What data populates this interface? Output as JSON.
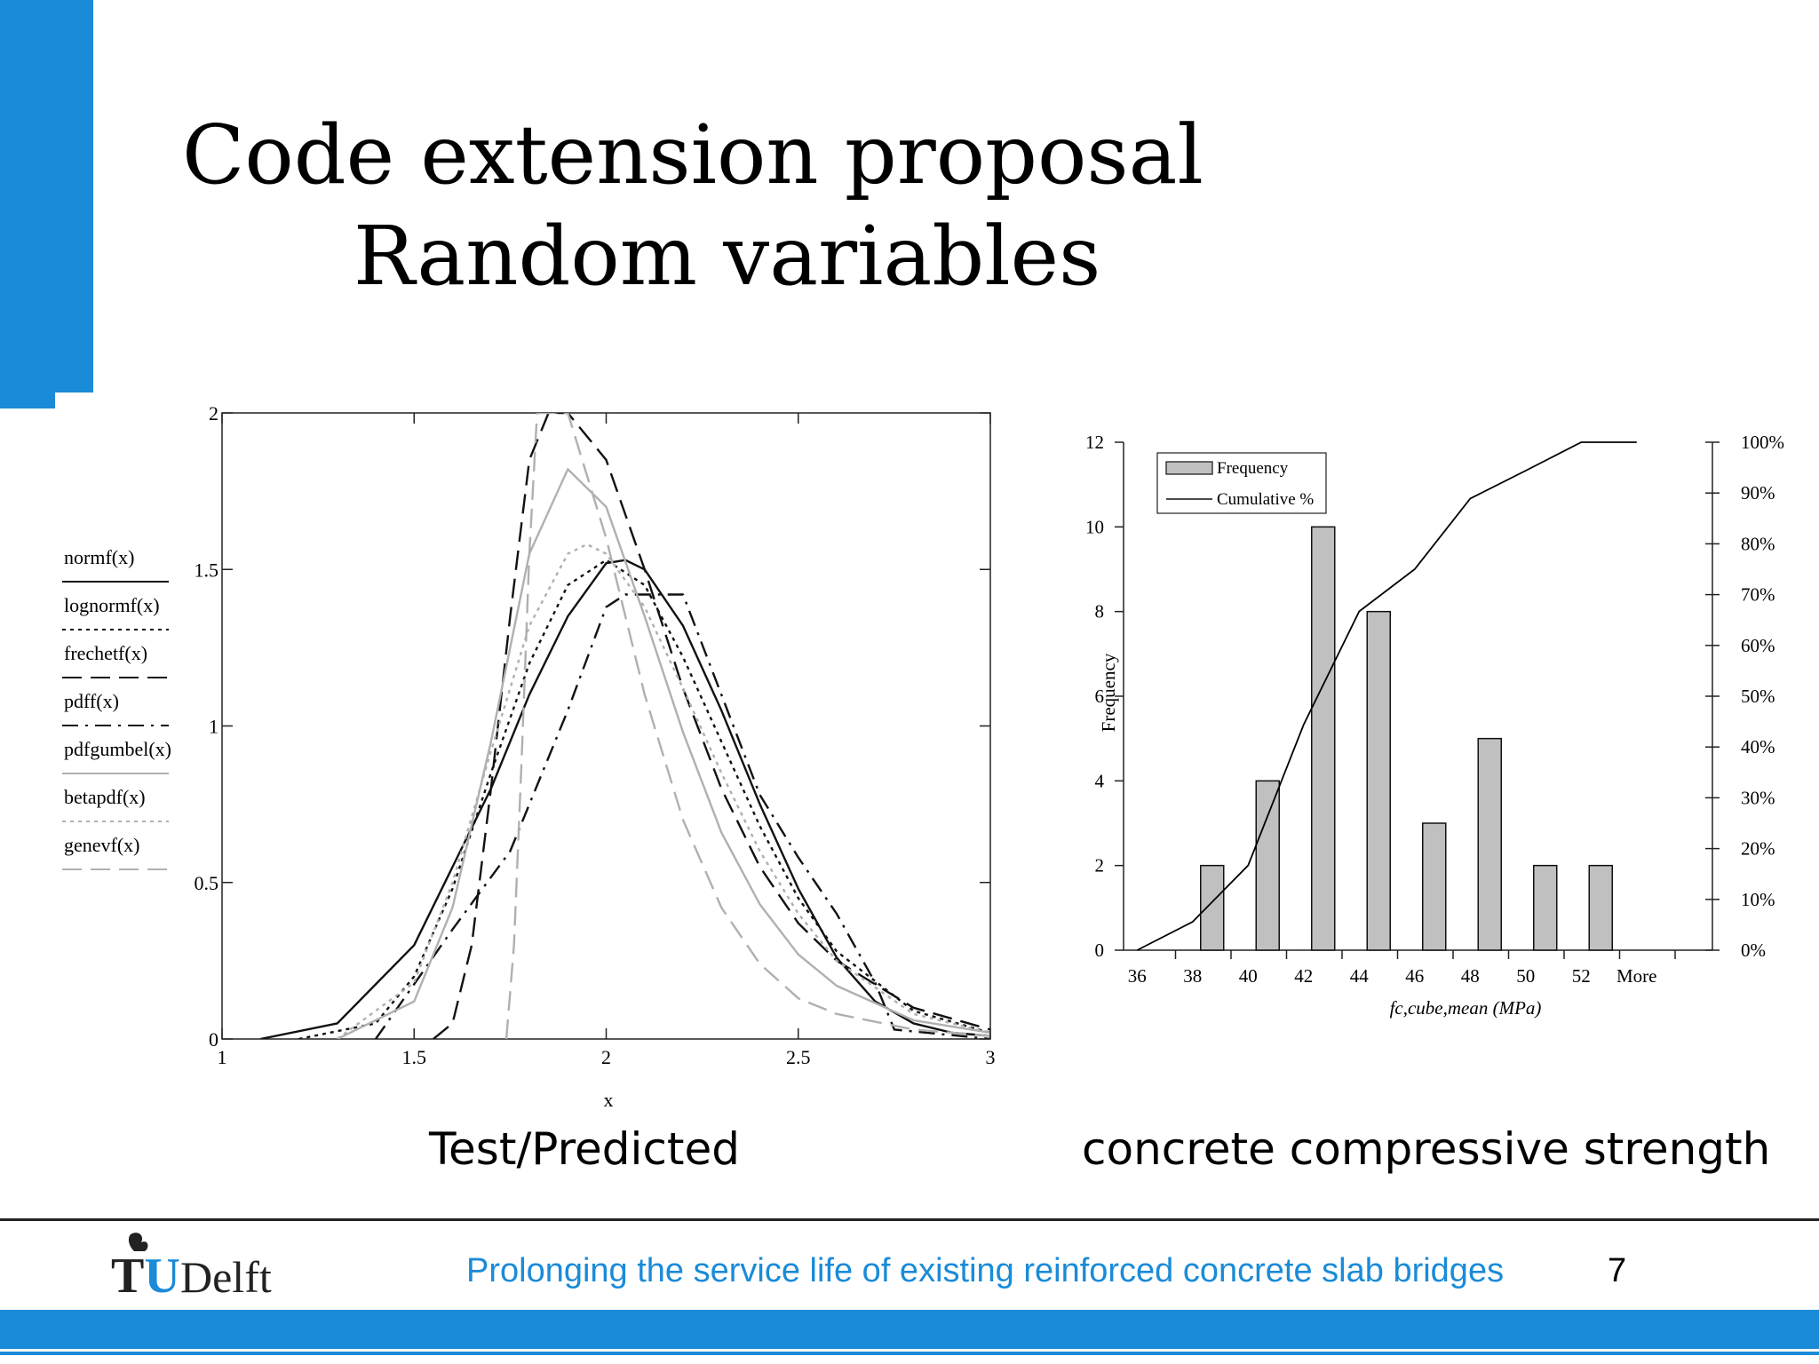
{
  "slide": {
    "title_line1": "Code extension proposal",
    "title_line2": "Random variables",
    "caption_left": "Test/Predicted",
    "caption_right": "concrete compressive strength",
    "footer_text": "Prolonging the service life of existing reinforced concrete slab bridges",
    "page_number": "7",
    "logo_text": "Delft",
    "logo_letters": "TU",
    "accent_color": "#1a8bd8"
  },
  "chart_data": [
    {
      "type": "line",
      "title": "",
      "xlabel": "x",
      "ylabel": "",
      "xlim": [
        1,
        3
      ],
      "ylim": [
        0,
        2
      ],
      "xticks": [
        "1",
        "1.5",
        "2",
        "2.5",
        "3"
      ],
      "yticks": [
        "0",
        "0.5",
        "1",
        "1.5",
        "2"
      ],
      "legend_position": "left",
      "series": [
        {
          "name": "normf(x)",
          "style": "solid-black",
          "x": [
            1.1,
            1.3,
            1.5,
            1.7,
            1.8,
            1.9,
            2.0,
            2.05,
            2.1,
            2.2,
            2.3,
            2.4,
            2.5,
            2.6,
            2.7,
            2.8,
            2.9,
            3.0
          ],
          "y": [
            0.0,
            0.05,
            0.3,
            0.8,
            1.1,
            1.35,
            1.52,
            1.53,
            1.5,
            1.32,
            1.05,
            0.75,
            0.48,
            0.26,
            0.12,
            0.05,
            0.02,
            0.01
          ]
        },
        {
          "name": "lognormf(x)",
          "style": "dotted-black",
          "x": [
            1.2,
            1.4,
            1.5,
            1.6,
            1.7,
            1.8,
            1.9,
            2.0,
            2.1,
            2.2,
            2.3,
            2.4,
            2.5,
            2.6,
            2.8,
            3.0
          ],
          "y": [
            0.0,
            0.05,
            0.2,
            0.48,
            0.85,
            1.2,
            1.45,
            1.53,
            1.45,
            1.22,
            0.95,
            0.68,
            0.45,
            0.28,
            0.09,
            0.02
          ]
        },
        {
          "name": "frechetf(x)",
          "style": "dash-black",
          "x": [
            1.55,
            1.6,
            1.65,
            1.7,
            1.75,
            1.8,
            1.85,
            1.9,
            2.0,
            2.1,
            2.2,
            2.3,
            2.4,
            2.5,
            2.6,
            2.8,
            3.0
          ],
          "y": [
            0.0,
            0.05,
            0.3,
            0.8,
            1.35,
            1.85,
            2.0,
            2.0,
            1.85,
            1.5,
            1.12,
            0.8,
            0.55,
            0.37,
            0.25,
            0.1,
            0.03
          ]
        },
        {
          "name": "pdff(x)",
          "style": "dashdot-black",
          "x": [
            1.4,
            1.6,
            1.75,
            1.9,
            2.0,
            2.05,
            2.2,
            2.3,
            2.4,
            2.5,
            2.6,
            2.7,
            2.75,
            3.0
          ],
          "y": [
            0.0,
            0.35,
            0.6,
            1.05,
            1.38,
            1.42,
            1.42,
            1.1,
            0.78,
            0.58,
            0.4,
            0.18,
            0.03,
            0.0
          ]
        },
        {
          "name": "pdfgumbel(x)",
          "style": "solid-grey",
          "x": [
            1.3,
            1.5,
            1.6,
            1.7,
            1.8,
            1.9,
            2.0,
            2.1,
            2.2,
            2.3,
            2.4,
            2.5,
            2.6,
            2.8,
            3.0
          ],
          "y": [
            0.0,
            0.12,
            0.42,
            0.95,
            1.55,
            1.82,
            1.7,
            1.35,
            0.98,
            0.66,
            0.43,
            0.27,
            0.17,
            0.06,
            0.02
          ]
        },
        {
          "name": "betapdf(x)",
          "style": "dotted-grey",
          "x": [
            1.3,
            1.5,
            1.6,
            1.7,
            1.8,
            1.9,
            1.95,
            2.0,
            2.1,
            2.2,
            2.3,
            2.4,
            2.5,
            2.6,
            2.8,
            3.0
          ],
          "y": [
            0.0,
            0.18,
            0.5,
            0.92,
            1.32,
            1.55,
            1.58,
            1.55,
            1.38,
            1.12,
            0.85,
            0.6,
            0.4,
            0.25,
            0.08,
            0.02
          ]
        },
        {
          "name": "genevf(x)",
          "style": "dash-grey",
          "x": [
            1.74,
            1.76,
            1.78,
            1.8,
            1.82,
            1.85,
            1.9,
            2.0,
            2.1,
            2.2,
            2.3,
            2.4,
            2.5,
            2.6,
            2.8,
            3.0
          ],
          "y": [
            0.0,
            0.3,
            0.9,
            1.55,
            2.0,
            2.0,
            2.0,
            1.6,
            1.1,
            0.7,
            0.42,
            0.24,
            0.13,
            0.08,
            0.03,
            0.01
          ]
        }
      ]
    },
    {
      "type": "bar",
      "title": "",
      "xlabel": "fc,cube,mean (MPa)",
      "ylabel": "Frequency",
      "categories": [
        "36",
        "38",
        "40",
        "42",
        "44",
        "46",
        "48",
        "50",
        "52",
        "More"
      ],
      "ylim": [
        0,
        12
      ],
      "yticks": [
        "0",
        "2",
        "4",
        "6",
        "8",
        "10",
        "12"
      ],
      "y2lim": [
        0,
        100
      ],
      "y2ticks": [
        "0%",
        "10%",
        "20%",
        "30%",
        "40%",
        "50%",
        "60%",
        "70%",
        "80%",
        "90%",
        "100%"
      ],
      "legend_position": "top-left",
      "series": [
        {
          "name": "Frequency",
          "type": "bar",
          "color": "#c0c0c0",
          "values": [
            0,
            2,
            4,
            10,
            8,
            3,
            5,
            2,
            2,
            0
          ]
        },
        {
          "name": "Cumulative %",
          "type": "line",
          "color": "#000000",
          "values": [
            0,
            5.6,
            16.7,
            44.4,
            66.7,
            75.0,
            88.9,
            94.4,
            100,
            100
          ]
        }
      ]
    }
  ]
}
